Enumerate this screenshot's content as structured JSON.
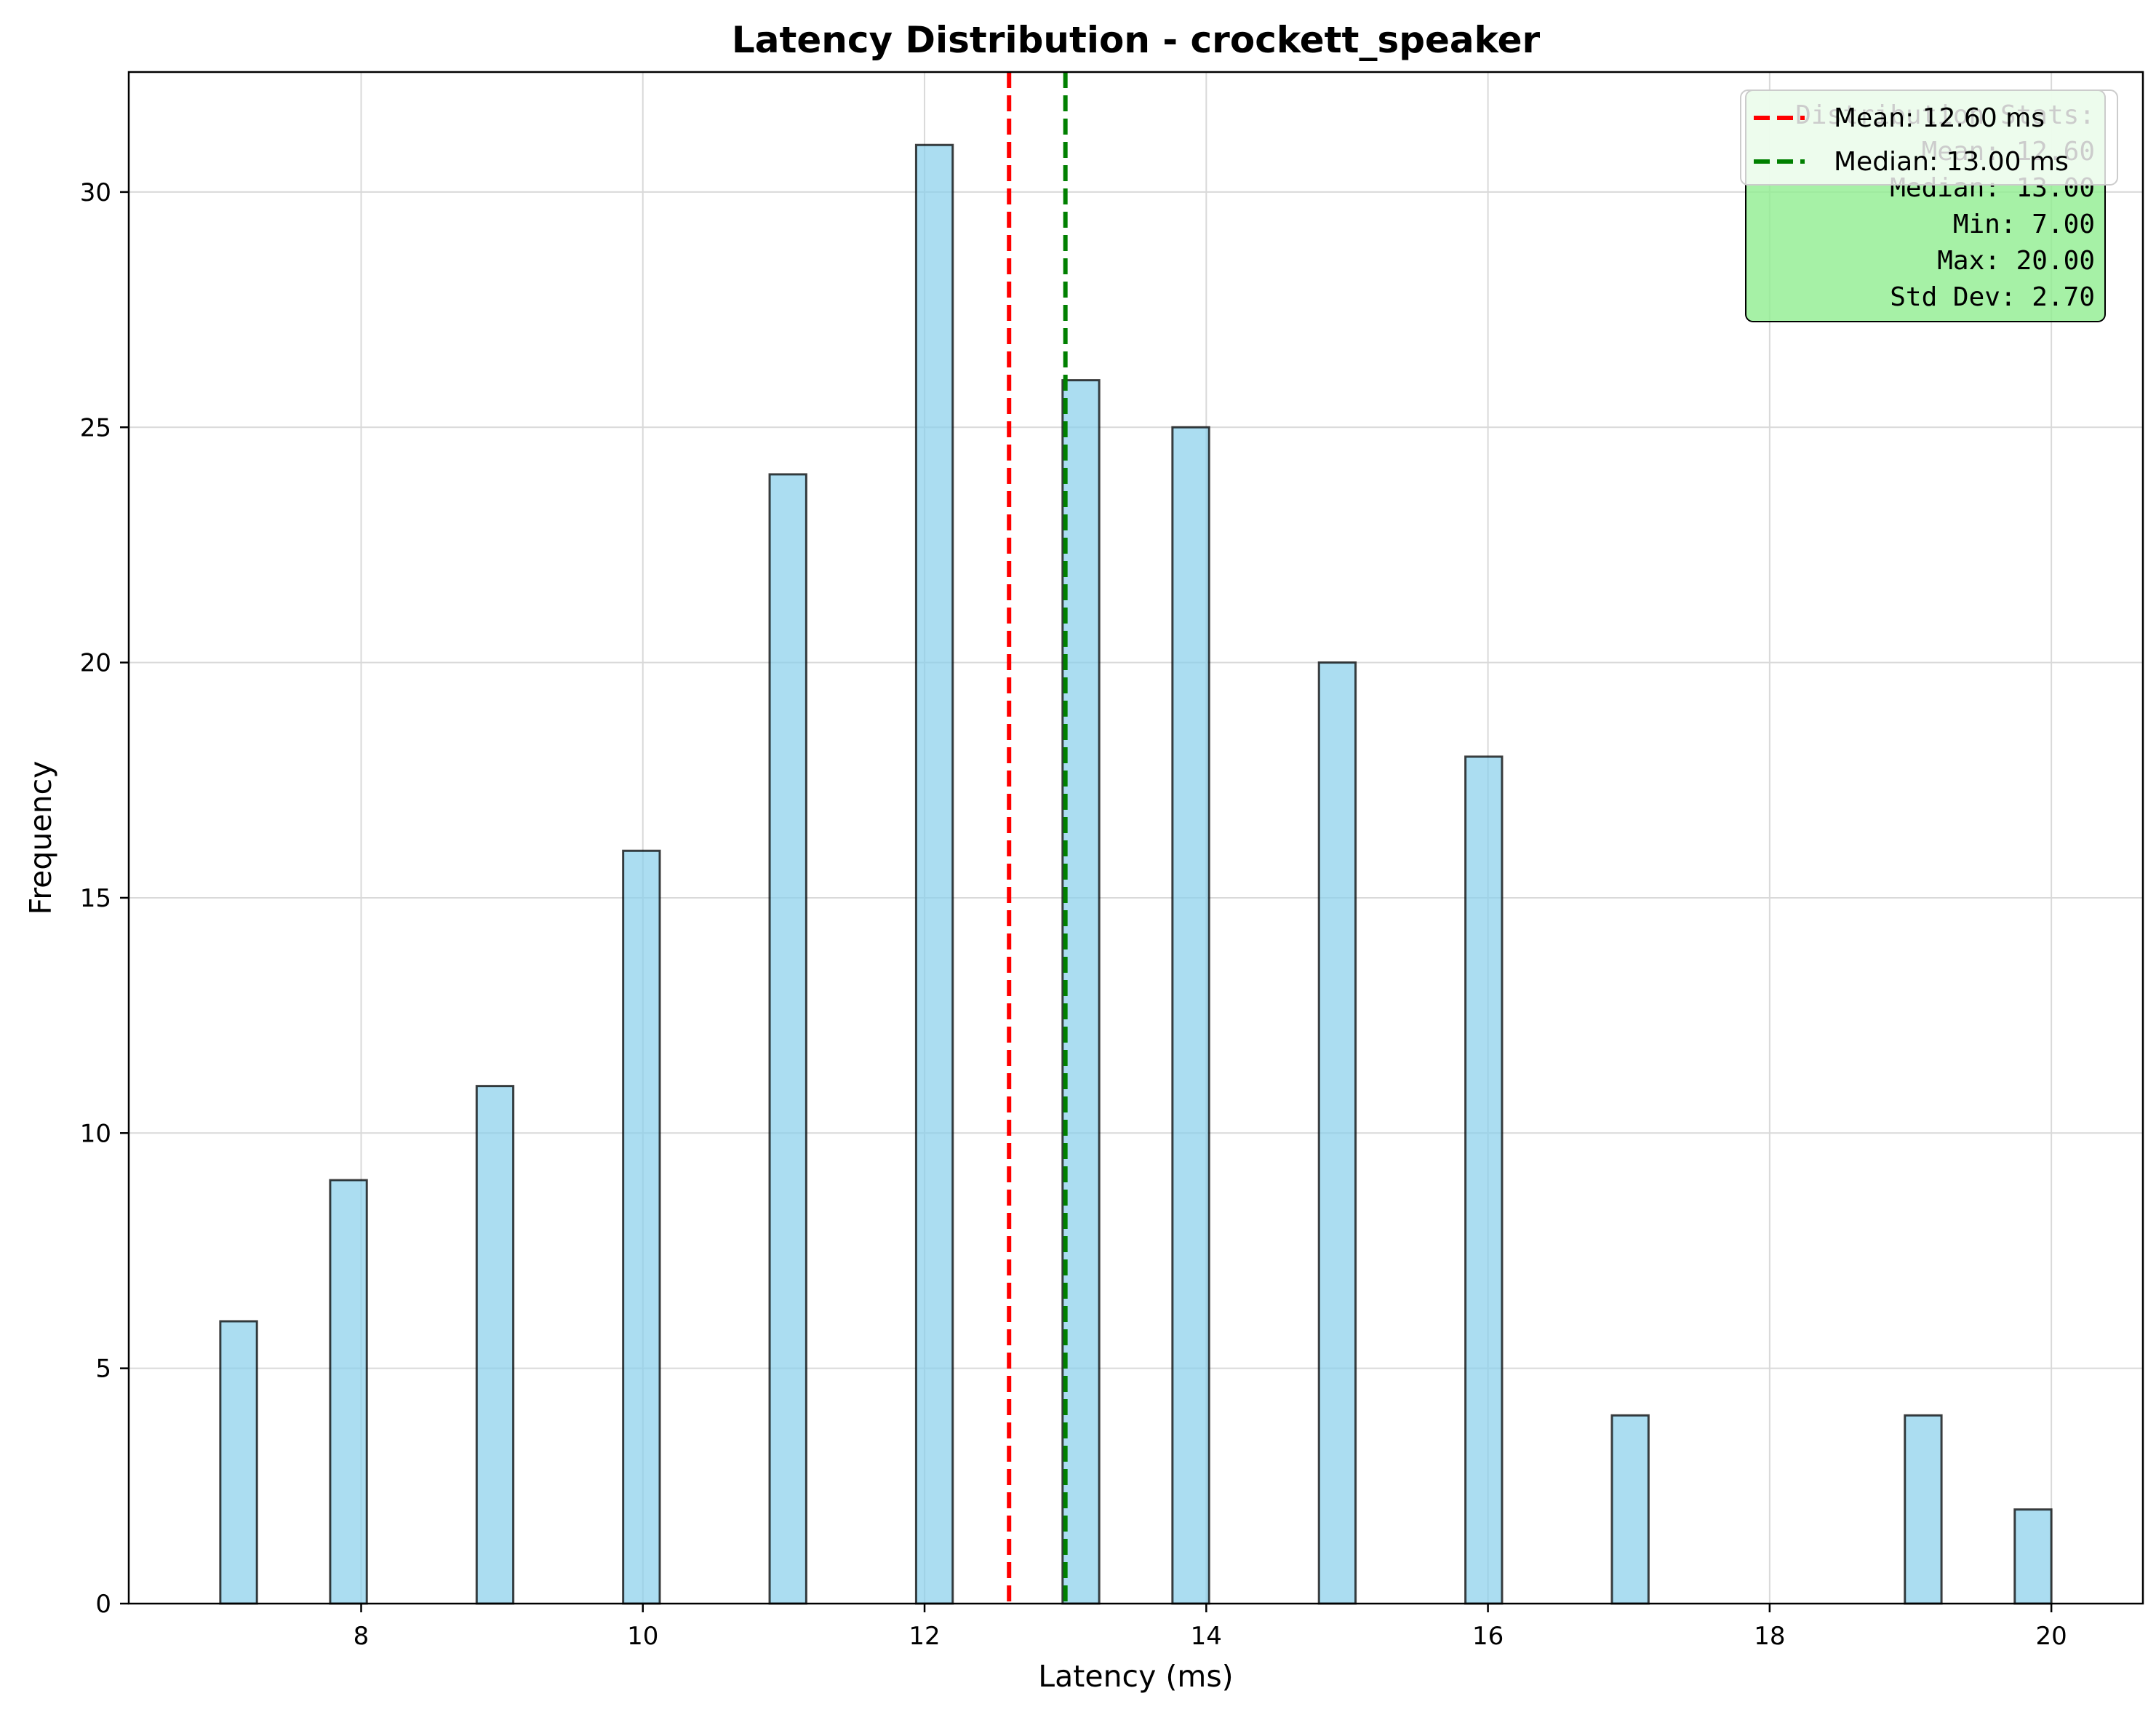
{
  "chart_data": {
    "type": "bar",
    "title": "Latency Distribution - crockett_speaker",
    "xlabel": "Latency (ms)",
    "ylabel": "Frequency",
    "xlim": [
      6.35,
      20.65
    ],
    "ylim": [
      0,
      32.55
    ],
    "xticks": [
      8,
      10,
      12,
      14,
      16,
      18,
      20
    ],
    "yticks": [
      0,
      5,
      10,
      15,
      20,
      25,
      30
    ],
    "grid": true,
    "bins": [
      {
        "x0": 7.0,
        "x1": 7.26,
        "count": 6
      },
      {
        "x0": 7.78,
        "x1": 8.04,
        "count": 9
      },
      {
        "x0": 8.82,
        "x1": 9.08,
        "count": 11
      },
      {
        "x0": 9.86,
        "x1": 10.12,
        "count": 16
      },
      {
        "x0": 10.9,
        "x1": 11.16,
        "count": 24
      },
      {
        "x0": 11.94,
        "x1": 12.2,
        "count": 31
      },
      {
        "x0": 12.98,
        "x1": 13.24,
        "count": 26
      },
      {
        "x0": 13.76,
        "x1": 14.02,
        "count": 25
      },
      {
        "x0": 14.8,
        "x1": 15.06,
        "count": 20
      },
      {
        "x0": 15.84,
        "x1": 16.1,
        "count": 18
      },
      {
        "x0": 16.88,
        "x1": 17.14,
        "count": 4
      },
      {
        "x0": 18.96,
        "x1": 19.22,
        "count": 4
      },
      {
        "x0": 19.74,
        "x1": 20.0,
        "count": 2
      }
    ],
    "lines": [
      {
        "label": "Mean: 12.60 ms",
        "x": 12.6,
        "color": "#ff0000"
      },
      {
        "label": "Median: 13.00 ms",
        "x": 13.0,
        "color": "#008000"
      }
    ],
    "stats_box": {
      "lines": [
        "Distribution Stats:",
        "Mean: 12.60",
        "Median: 13.00",
        "Min: 7.00",
        "Max: 20.00",
        "Std Dev: 2.70"
      ],
      "background": "#90ee90"
    },
    "legend_position": "top-right",
    "colors": {
      "bar_fill": "#87ceeb",
      "bar_edge": "#000000"
    }
  }
}
